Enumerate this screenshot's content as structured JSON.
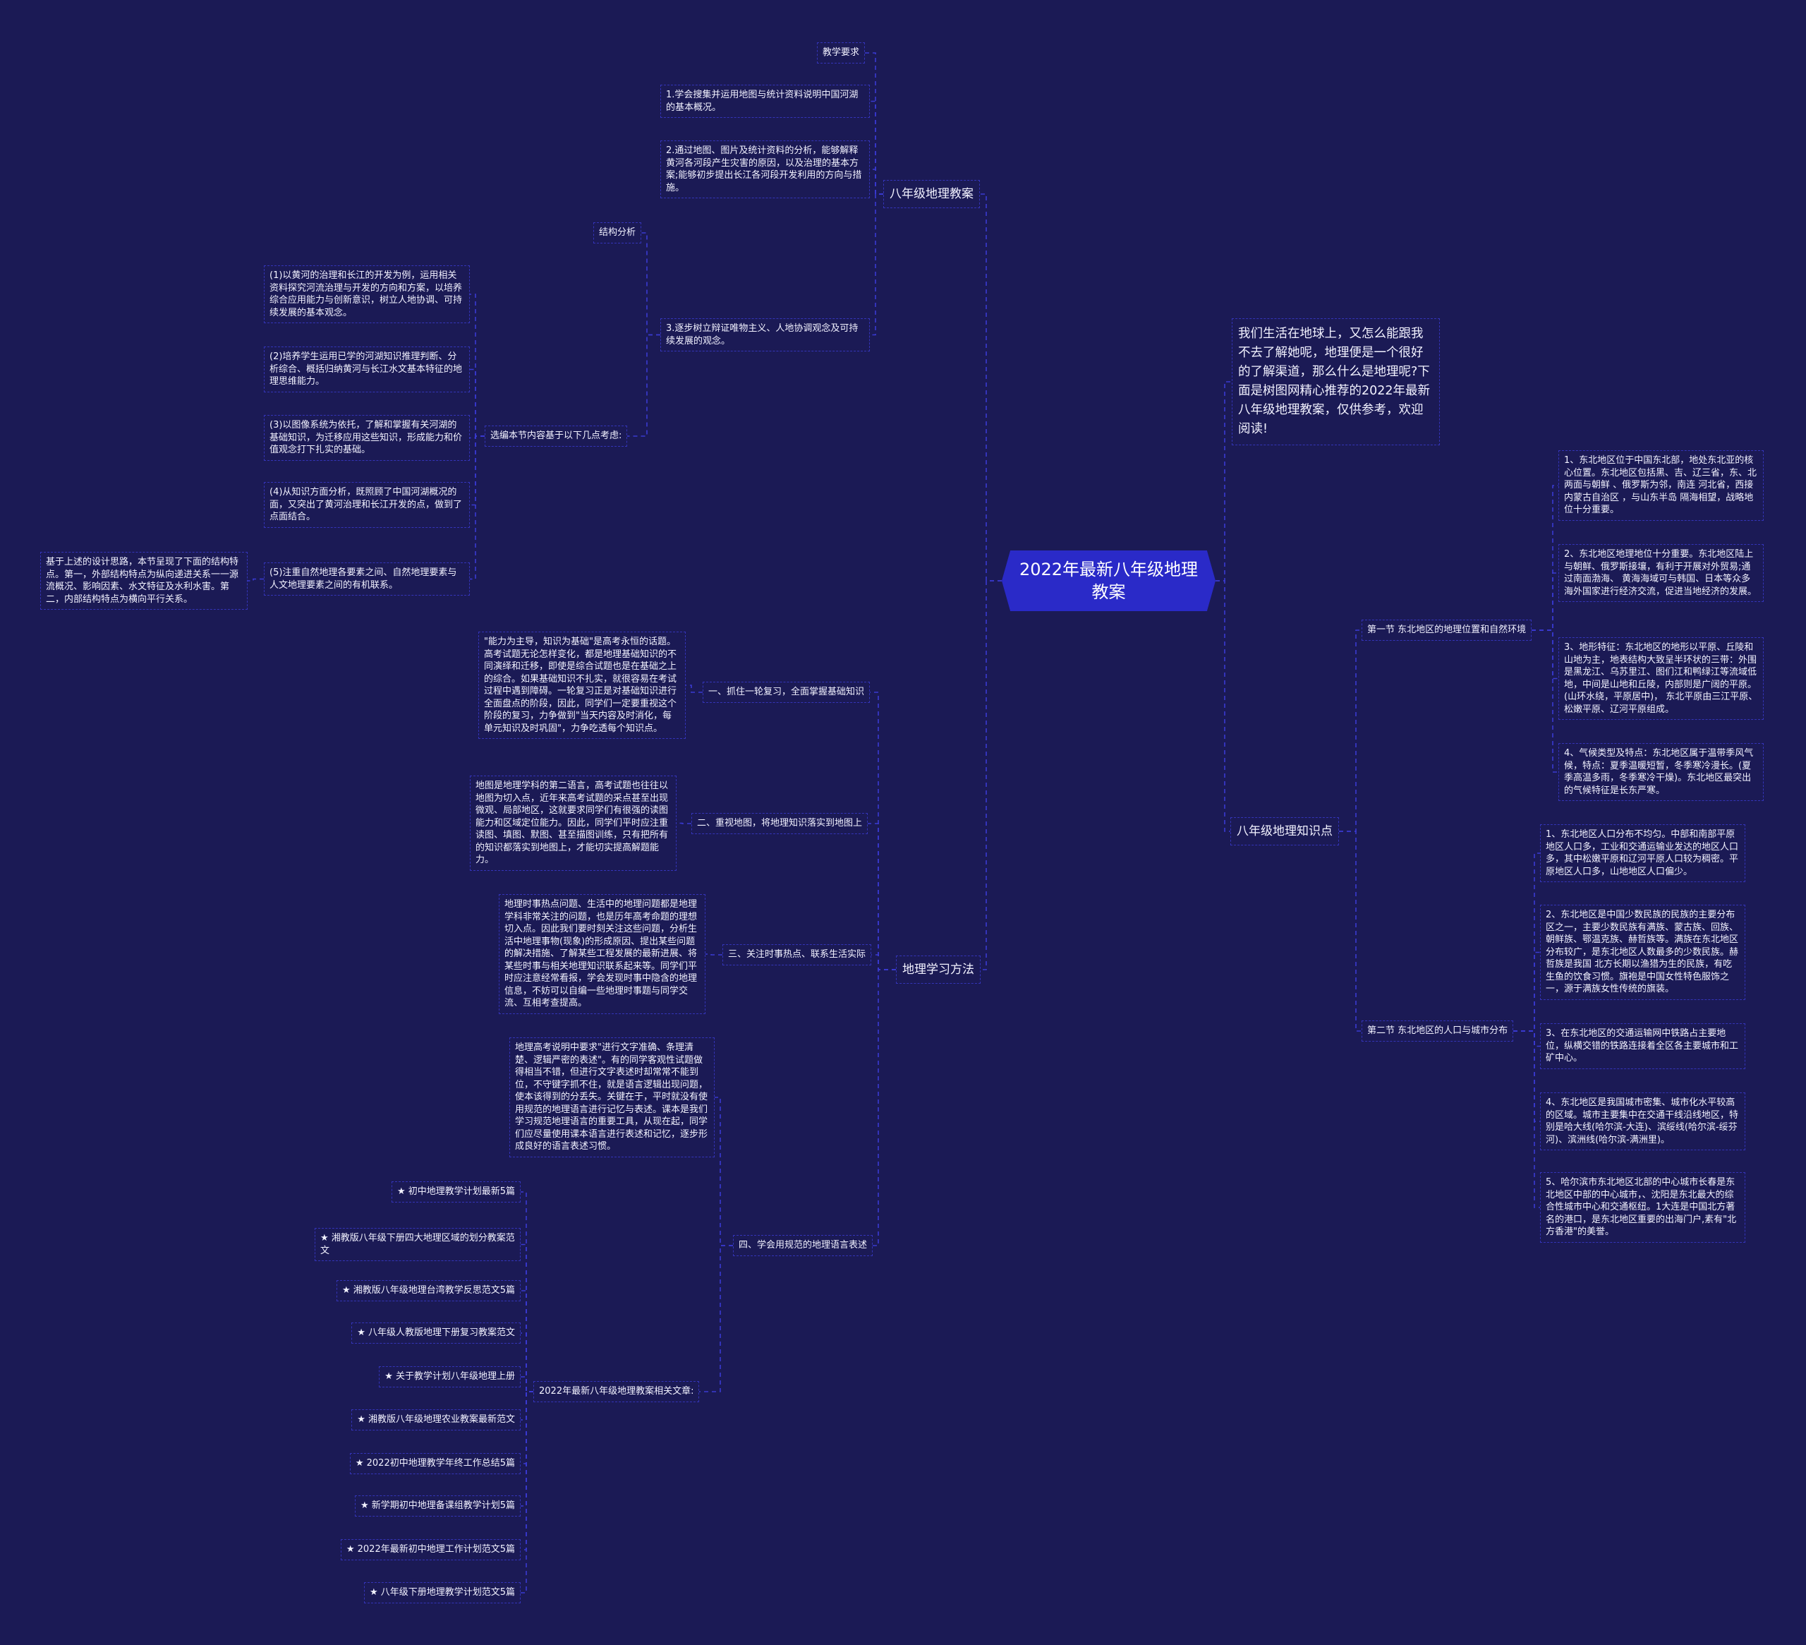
{
  "root": {
    "title": "2022年最新八年级地理教案"
  },
  "lesson_plan": {
    "label": "八年级地理教案",
    "teaching_requirements": "教学要求",
    "req1": "1.学会搜集并运用地图与统计资料说明中国河湖的基本概况。",
    "req2": "2.通过地图、图片及统计资料的分析，能够解释黄河各河段产生灾害的原因，以及治理的基本方案;能够初步提出长江各河段开发利用的方向与措施。",
    "req3": "3.逐步树立辩证唯物主义、人地协调观念及可持续发展的观念。",
    "structure_analysis": "结构分析",
    "selection_basis": "选编本节内容基于以下几点考虑:",
    "points": [
      "(1)以黄河的治理和长江的开发为例，运用相关资料探究河流治理与开发的方向和方案，以培养综合应用能力与创新意识，树立人地协调、可持续发展的基本观念。",
      "(2)培养学生运用已学的河湖知识推理判断、分析综合、概括归纳黄河与长江水文基本特征的地理思维能力。",
      "(3)以图像系统为依托，了解和掌握有关河湖的基础知识，为迁移应用这些知识，形成能力和价值观念打下扎实的基础。",
      "(4)从知识方面分析，既照顾了中国河湖概况的面，又突出了黄河治理和长江开发的点，做到了点面结合。",
      "(5)注重自然地理各要素之间、自然地理要素与人文地理要素之间的有机联系。"
    ],
    "design_summary": "基于上述的设计思路，本节呈现了下面的结构特点。第一，外部结构特点为纵向递进关系一一源流概况、影响因素、水文特征及水利水害。第二，内部结构特点为横向平行关系。"
  },
  "study_methods": {
    "label": "地理学习方法",
    "items": [
      {
        "title": "一、抓住一轮复习，全面掌握基础知识",
        "detail": "\"能力为主导，知识为基础\"是高考永恒的话题。高考试题无论怎样变化，都是地理基础知识的不同演绎和迁移，即使是综合试题也是在基础之上的综合。如果基础知识不扎实，就很容易在考试过程中遇到障碍。一轮复习正是对基础知识进行全面盘点的阶段，因此，同学们一定要重视这个阶段的复习，力争做到\"当天内容及时消化，每单元知识及时巩固\"，力争吃透每个知识点。"
      },
      {
        "title": "二、重视地图，将地理知识落实到地图上",
        "detail": "地图是地理学科的第二语言，高考试题也往往以地图为切入点，近年来高考试题的采点甚至出现微观、局部地区，这就要求同学们有很强的读图能力和区域定位能力。因此，同学们平时应注重读图、填图、默图、甚至描图训练，只有把所有的知识都落实到地图上，才能切实提高解题能力。"
      },
      {
        "title": "三、关注时事热点、联系生活实际",
        "detail": "地理时事热点问题、生活中的地理问题都是地理学科非常关注的问题，也是历年高考命题的理想切入点。因此我们要时刻关注这些问题，分析生活中地理事物(现象)的形成原因、提出某些问题的解决措施、了解某些工程发展的最新进展、将某些时事与相关地理知识联系起来等。同学们平时应注意经常看报，学会发现时事中隐含的地理信息，不妨可以自编一些地理时事题与同学交流、互相考查提高。"
      },
      {
        "title": "四、学会用规范的地理语言表述",
        "detail": "地理高考说明中要求\"进行文字准确、条理清楚、逻辑严密的表述\"。有的同学客观性试题做得相当不错，但进行文字表述时却常常不能到位，不守键字抓不住，就是语言逻辑出现问题，使本该得到的分丢失。关键在于，平时就没有使用规范的地理语言进行记忆与表述。课本是我们学习规范地理语言的重要工具，从现在起，同学们应尽量使用课本语言进行表述和记忆，逐步形成良好的语言表述习惯。"
      }
    ],
    "related": {
      "label": "2022年最新八年级地理教案相关文章:",
      "articles": [
        "★ 初中地理教学计划最新5篇",
        "★ 湘教版八年级下册四大地理区域的划分教案范文",
        "★ 湘教版八年级地理台湾教学反思范文5篇",
        "★ 八年级人教版地理下册复习教案范文",
        "★ 关于教学计划八年级地理上册",
        "★ 湘教版八年级地理农业教案最新范文",
        "★ 2022初中地理教学年终工作总结5篇",
        "★ 新学期初中地理备课组教学计划5篇",
        "★ 2022年最新初中地理工作计划范文5篇",
        "★ 八年级下册地理教学计划范文5篇"
      ]
    }
  },
  "intro": "我们生活在地球上，又怎么能跟我不去了解她呢，地理便是一个很好的了解渠道，那么什么是地理呢?下面是树图网精心推荐的2022年最新八年级地理教案，仅供参考，欢迎阅读!",
  "knowledge": {
    "label": "八年级地理知识点",
    "section1": {
      "title": "第一节 东北地区的地理位置和自然环境",
      "items": [
        "1、东北地区位于中国东北部，地处东北亚的核心位置。东北地区包括黑、吉、辽三省，东、北两面与朝鲜 、俄罗斯为邻，南连 河北省，西接内蒙古自治区 ，与山东半岛 隔海相望，战略地位十分重要。",
        "2、东北地区地理地位十分重要。东北地区陆上与朝鲜、俄罗斯接壤，有利于开展对外贸易;通过南面渤海、 黄海海域可与韩国、日本等众多海外国家进行经济交流，促进当地经济的发展。",
        "3、地形特征：东北地区的地形以平原、丘陵和山地为主，地表结构大致呈半环状的三带：外围是黑龙江、乌苏里江、图们江和鸭绿江等流域低地，中间是山地和丘陵，内部则是广阔的平原。(山环水绕，平原居中)， 东北平原由三江平原、松嫩平原、辽河平原组成。",
        "4、气候类型及特点：东北地区属于温带季风气候，特点：夏季温暖短暂，冬季寒冷漫长。(夏季高温多雨，冬季寒冷干燥)。东北地区最突出的气候特征是长东严寒。"
      ]
    },
    "section2": {
      "title": "第二节 东北地区的人口与城市分布",
      "items": [
        "1、东北地区人口分布不均匀。中部和南部平原地区人口多，工业和交通运输业发达的地区人口多，其中松嫩平原和辽河平原人口较为稠密。平原地区人口多，山地地区人口偏少。",
        "2、东北地区是中国少数民族的民族的主要分布区之一，主要少数民族有满族、蒙古族、回族、朝鲜族、鄂温克族、赫哲族等。满族在东北地区分布较广，是东北地区人数最多的少数民族。赫哲族是我国 北方长期以渔猎为生的民族，有吃生鱼的饮食习惯。旗袍是中国女性特色服饰之一，源于满族女性传统的旗装。",
        "3、在东北地区的交通运输网中铁路占主要地位，纵横交错的铁路连接着全区各主要城市和工矿中心。",
        "4、东北地区是我国城市密集、城市化水平较高的区域。城市主要集中在交通干线沿线地区，特别是哈大线(哈尔滨-大连)、滨绥线(哈尔滨-绥芬河)、滨洲线(哈尔滨-满洲里)。",
        "5、哈尔滨市东北地区北部的中心城市长春是东北地区中部的中心城市，、沈阳是东北最大的综合性城市中心和交通枢纽。1大连是中国北方著名的港口，是东北地区重要的出海门户,素有\"北方香港\"的美誉。"
      ]
    }
  },
  "colors": {
    "background": "#1b1a55",
    "root_fill": "#2a2ac8",
    "connector": "#3a3ad2",
    "text": "#ffffff"
  }
}
